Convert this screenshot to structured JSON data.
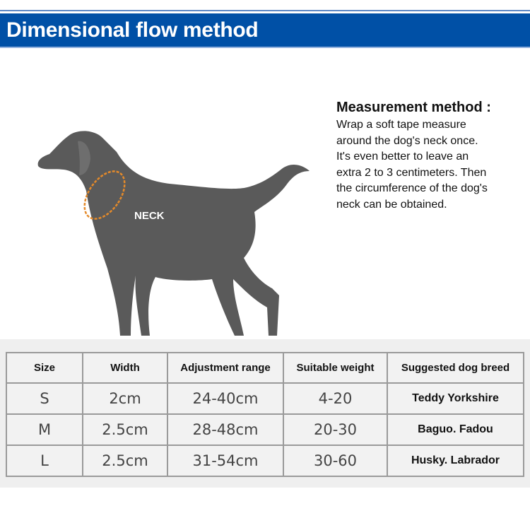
{
  "header": {
    "title": "Dimensional flow method",
    "color": "#0050a6"
  },
  "illustration": {
    "icon": "dog-silhouette-icon",
    "neck_label": "NECK",
    "measure_color": "#e48a2a"
  },
  "method": {
    "title": "Measurement method :",
    "lines": [
      "Wrap a soft tape measure",
      "around the dog's neck once.",
      "It's even better to leave an",
      "extra 2 to 3 centimeters. Then",
      "the circumference of the dog's",
      "neck can be obtained."
    ]
  },
  "table": {
    "headers": [
      "Size",
      "Width",
      "Adjustment range",
      "Suitable weight",
      "Suggested dog breed"
    ],
    "rows": [
      [
        "S",
        "2cm",
        "24-40cm",
        "4-20",
        "Teddy Yorkshire"
      ],
      [
        "M",
        "2.5cm",
        "28-48cm",
        "20-30",
        "Baguo. Fadou"
      ],
      [
        "L",
        "2.5cm",
        "31-54cm",
        "30-60",
        "Husky. Labrador"
      ]
    ]
  }
}
